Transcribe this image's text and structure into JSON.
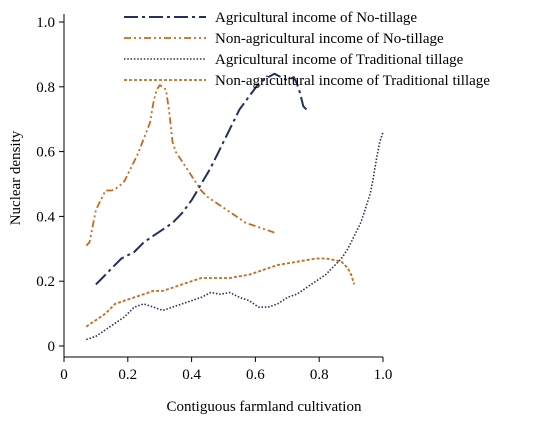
{
  "chart_data": {
    "type": "line",
    "title": "",
    "xlabel": "Contiguous farmland cultivation",
    "ylabel": "Nuclear density",
    "xlim": [
      0,
      1.0
    ],
    "ylim": [
      0,
      1.0
    ],
    "x_ticks": [
      0,
      0.2,
      0.4,
      0.6,
      0.8,
      1.0
    ],
    "x_tick_labels": [
      "0",
      "0.2",
      "0.4",
      "0.6",
      "0.8",
      "1.0"
    ],
    "y_ticks": [
      0,
      0.2,
      0.4,
      0.6,
      0.8,
      1.0
    ],
    "y_tick_labels": [
      "0",
      "0.2",
      "0.4",
      "0.6",
      "0.8",
      "1.0"
    ],
    "grid": false,
    "legend_position": "top",
    "series": [
      {
        "name": "Agricultural income of No-tillage",
        "color": "#22305e",
        "style": "dash-dot",
        "points": [
          [
            0.1,
            0.19
          ],
          [
            0.12,
            0.21
          ],
          [
            0.15,
            0.24
          ],
          [
            0.18,
            0.27
          ],
          [
            0.22,
            0.29
          ],
          [
            0.25,
            0.32
          ],
          [
            0.28,
            0.34
          ],
          [
            0.31,
            0.36
          ],
          [
            0.34,
            0.38
          ],
          [
            0.37,
            0.41
          ],
          [
            0.4,
            0.45
          ],
          [
            0.43,
            0.5
          ],
          [
            0.46,
            0.55
          ],
          [
            0.49,
            0.61
          ],
          [
            0.52,
            0.67
          ],
          [
            0.55,
            0.73
          ],
          [
            0.58,
            0.77
          ],
          [
            0.61,
            0.81
          ],
          [
            0.64,
            0.83
          ],
          [
            0.66,
            0.84
          ],
          [
            0.68,
            0.83
          ],
          [
            0.7,
            0.82
          ],
          [
            0.72,
            0.83
          ],
          [
            0.73,
            0.81
          ],
          [
            0.74,
            0.78
          ],
          [
            0.75,
            0.74
          ],
          [
            0.76,
            0.73
          ],
          [
            0.76,
            0.72
          ]
        ]
      },
      {
        "name": "Non-agricultural income of No-tillage",
        "color": "#c8691b",
        "style": "dash-dot-dot",
        "points": [
          [
            0.07,
            0.31
          ],
          [
            0.08,
            0.32
          ],
          [
            0.09,
            0.37
          ],
          [
            0.1,
            0.42
          ],
          [
            0.12,
            0.46
          ],
          [
            0.13,
            0.48
          ],
          [
            0.15,
            0.48
          ],
          [
            0.17,
            0.49
          ],
          [
            0.19,
            0.51
          ],
          [
            0.21,
            0.55
          ],
          [
            0.23,
            0.59
          ],
          [
            0.25,
            0.64
          ],
          [
            0.27,
            0.69
          ],
          [
            0.28,
            0.75
          ],
          [
            0.29,
            0.79
          ],
          [
            0.3,
            0.805
          ],
          [
            0.31,
            0.8
          ],
          [
            0.32,
            0.79
          ],
          [
            0.33,
            0.72
          ],
          [
            0.34,
            0.63
          ],
          [
            0.35,
            0.6
          ],
          [
            0.37,
            0.57
          ],
          [
            0.39,
            0.54
          ],
          [
            0.41,
            0.51
          ],
          [
            0.43,
            0.48
          ],
          [
            0.45,
            0.46
          ],
          [
            0.48,
            0.44
          ],
          [
            0.51,
            0.42
          ],
          [
            0.54,
            0.4
          ],
          [
            0.57,
            0.38
          ],
          [
            0.6,
            0.37
          ],
          [
            0.63,
            0.36
          ],
          [
            0.66,
            0.35
          ]
        ]
      },
      {
        "name": "Agricultural income of Traditional tillage",
        "color": "#22305e",
        "style": "dotted",
        "points": [
          [
            0.07,
            0.02
          ],
          [
            0.1,
            0.03
          ],
          [
            0.13,
            0.05
          ],
          [
            0.16,
            0.07
          ],
          [
            0.19,
            0.09
          ],
          [
            0.22,
            0.12
          ],
          [
            0.25,
            0.13
          ],
          [
            0.28,
            0.12
          ],
          [
            0.31,
            0.11
          ],
          [
            0.34,
            0.12
          ],
          [
            0.37,
            0.13
          ],
          [
            0.4,
            0.14
          ],
          [
            0.43,
            0.15
          ],
          [
            0.46,
            0.165
          ],
          [
            0.49,
            0.16
          ],
          [
            0.52,
            0.165
          ],
          [
            0.55,
            0.15
          ],
          [
            0.58,
            0.14
          ],
          [
            0.61,
            0.12
          ],
          [
            0.64,
            0.12
          ],
          [
            0.67,
            0.13
          ],
          [
            0.7,
            0.15
          ],
          [
            0.73,
            0.16
          ],
          [
            0.76,
            0.18
          ],
          [
            0.79,
            0.2
          ],
          [
            0.82,
            0.22
          ],
          [
            0.85,
            0.25
          ],
          [
            0.87,
            0.27
          ],
          [
            0.89,
            0.3
          ],
          [
            0.91,
            0.34
          ],
          [
            0.93,
            0.38
          ],
          [
            0.95,
            0.44
          ],
          [
            0.96,
            0.47
          ],
          [
            0.97,
            0.52
          ],
          [
            0.98,
            0.58
          ],
          [
            0.99,
            0.63
          ],
          [
            1.0,
            0.66
          ]
        ]
      },
      {
        "name": "Non-agricultural income of Traditional tillage",
        "color": "#c8691b",
        "style": "short-dash",
        "points": [
          [
            0.07,
            0.06
          ],
          [
            0.1,
            0.08
          ],
          [
            0.13,
            0.1
          ],
          [
            0.16,
            0.13
          ],
          [
            0.19,
            0.14
          ],
          [
            0.22,
            0.15
          ],
          [
            0.25,
            0.16
          ],
          [
            0.28,
            0.17
          ],
          [
            0.31,
            0.17
          ],
          [
            0.34,
            0.18
          ],
          [
            0.37,
            0.19
          ],
          [
            0.4,
            0.2
          ],
          [
            0.43,
            0.21
          ],
          [
            0.46,
            0.21
          ],
          [
            0.49,
            0.21
          ],
          [
            0.52,
            0.21
          ],
          [
            0.55,
            0.215
          ],
          [
            0.58,
            0.22
          ],
          [
            0.61,
            0.23
          ],
          [
            0.64,
            0.24
          ],
          [
            0.67,
            0.25
          ],
          [
            0.7,
            0.255
          ],
          [
            0.73,
            0.26
          ],
          [
            0.76,
            0.265
          ],
          [
            0.79,
            0.27
          ],
          [
            0.82,
            0.27
          ],
          [
            0.85,
            0.265
          ],
          [
            0.87,
            0.26
          ],
          [
            0.89,
            0.24
          ],
          [
            0.9,
            0.22
          ],
          [
            0.91,
            0.19
          ]
        ]
      }
    ]
  }
}
